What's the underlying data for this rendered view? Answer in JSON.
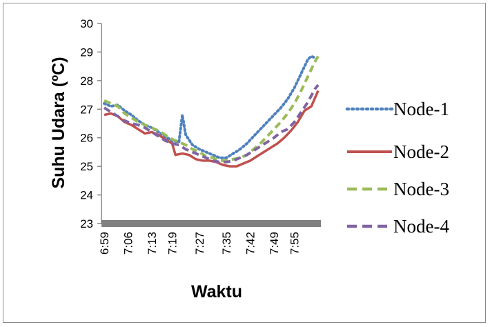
{
  "chart_data": {
    "type": "line",
    "xlabel": "Waktu",
    "ylabel": "Suhu Udara (ºC)",
    "ylim": [
      23,
      30
    ],
    "yticks": [
      "23",
      "24",
      "25",
      "26",
      "27",
      "28",
      "29",
      "30"
    ],
    "x_tick_labels": [
      "6:59",
      "7:06",
      "7:13",
      "7:19",
      "7:27",
      "7:35",
      "7:42",
      "7:49",
      "7:55"
    ],
    "x_start": "6:59",
    "x_end": "8:02",
    "grid": false,
    "legend_position": "right",
    "series": [
      {
        "name": "Node-1",
        "color": "#4f81bd",
        "dash": "dotted",
        "points": [
          [
            "6:59",
            27.2
          ],
          [
            "7:01",
            27.1
          ],
          [
            "7:03",
            27.15
          ],
          [
            "7:05",
            26.95
          ],
          [
            "7:07",
            26.8
          ],
          [
            "7:09",
            26.6
          ],
          [
            "7:11",
            26.45
          ],
          [
            "7:13",
            26.35
          ],
          [
            "7:15",
            26.2
          ],
          [
            "7:17",
            26.05
          ],
          [
            "7:19",
            25.9
          ],
          [
            "7:21",
            25.85
          ],
          [
            "7:22",
            26.8
          ],
          [
            "7:23",
            26.1
          ],
          [
            "7:25",
            25.75
          ],
          [
            "7:27",
            25.6
          ],
          [
            "7:29",
            25.5
          ],
          [
            "7:31",
            25.4
          ],
          [
            "7:33",
            25.3
          ],
          [
            "7:35",
            25.3
          ],
          [
            "7:37",
            25.45
          ],
          [
            "7:39",
            25.6
          ],
          [
            "7:41",
            25.8
          ],
          [
            "7:43",
            26.05
          ],
          [
            "7:45",
            26.3
          ],
          [
            "7:47",
            26.55
          ],
          [
            "7:49",
            26.8
          ],
          [
            "7:51",
            27.05
          ],
          [
            "7:53",
            27.35
          ],
          [
            "7:55",
            27.75
          ],
          [
            "7:57",
            28.25
          ],
          [
            "7:59",
            28.75
          ],
          [
            "8:00",
            28.85
          ],
          [
            "8:01",
            28.8
          ]
        ]
      },
      {
        "name": "Node-2",
        "color": "#c0504d",
        "dash": "solid",
        "points": [
          [
            "6:59",
            26.8
          ],
          [
            "7:01",
            26.85
          ],
          [
            "7:03",
            26.75
          ],
          [
            "7:05",
            26.55
          ],
          [
            "7:07",
            26.45
          ],
          [
            "7:09",
            26.3
          ],
          [
            "7:11",
            26.15
          ],
          [
            "7:13",
            26.2
          ],
          [
            "7:15",
            26.1
          ],
          [
            "7:17",
            25.95
          ],
          [
            "7:19",
            25.8
          ],
          [
            "7:20",
            25.4
          ],
          [
            "7:22",
            25.45
          ],
          [
            "7:24",
            25.4
          ],
          [
            "7:26",
            25.25
          ],
          [
            "7:28",
            25.2
          ],
          [
            "7:30",
            25.2
          ],
          [
            "7:32",
            25.15
          ],
          [
            "7:34",
            25.05
          ],
          [
            "7:36",
            25.0
          ],
          [
            "7:38",
            25.0
          ],
          [
            "7:40",
            25.1
          ],
          [
            "7:42",
            25.2
          ],
          [
            "7:44",
            25.35
          ],
          [
            "7:46",
            25.5
          ],
          [
            "7:48",
            25.65
          ],
          [
            "7:50",
            25.8
          ],
          [
            "7:52",
            26.0
          ],
          [
            "7:54",
            26.25
          ],
          [
            "7:56",
            26.55
          ],
          [
            "7:58",
            26.95
          ],
          [
            "8:00",
            27.1
          ],
          [
            "8:02",
            27.65
          ]
        ]
      },
      {
        "name": "Node-3",
        "color": "#9bbb59",
        "dash": "dashed",
        "points": [
          [
            "6:59",
            27.3
          ],
          [
            "7:01",
            27.2
          ],
          [
            "7:03",
            27.1
          ],
          [
            "7:05",
            26.85
          ],
          [
            "7:07",
            26.7
          ],
          [
            "7:09",
            26.55
          ],
          [
            "7:11",
            26.45
          ],
          [
            "7:13",
            26.35
          ],
          [
            "7:15",
            26.25
          ],
          [
            "7:17",
            26.1
          ],
          [
            "7:19",
            25.95
          ],
          [
            "7:21",
            25.85
          ],
          [
            "7:23",
            25.75
          ],
          [
            "7:25",
            25.6
          ],
          [
            "7:27",
            25.5
          ],
          [
            "7:29",
            25.35
          ],
          [
            "7:31",
            25.3
          ],
          [
            "7:33",
            25.2
          ],
          [
            "7:35",
            25.2
          ],
          [
            "7:37",
            25.25
          ],
          [
            "7:39",
            25.3
          ],
          [
            "7:41",
            25.4
          ],
          [
            "7:43",
            25.6
          ],
          [
            "7:45",
            25.8
          ],
          [
            "7:47",
            26.05
          ],
          [
            "7:49",
            26.3
          ],
          [
            "7:51",
            26.55
          ],
          [
            "7:53",
            26.85
          ],
          [
            "7:55",
            27.2
          ],
          [
            "7:57",
            27.65
          ],
          [
            "7:59",
            28.15
          ],
          [
            "8:01",
            28.65
          ],
          [
            "8:02",
            28.85
          ]
        ]
      },
      {
        "name": "Node-4",
        "color": "#8064a2",
        "dash": "dashed",
        "points": [
          [
            "6:59",
            27.05
          ],
          [
            "7:01",
            26.9
          ],
          [
            "7:03",
            26.75
          ],
          [
            "7:05",
            26.6
          ],
          [
            "7:07",
            26.5
          ],
          [
            "7:09",
            26.45
          ],
          [
            "7:11",
            26.35
          ],
          [
            "7:13",
            26.2
          ],
          [
            "7:15",
            26.05
          ],
          [
            "7:17",
            25.9
          ],
          [
            "7:19",
            25.8
          ],
          [
            "7:21",
            25.75
          ],
          [
            "7:23",
            25.6
          ],
          [
            "7:25",
            25.5
          ],
          [
            "7:27",
            25.4
          ],
          [
            "7:29",
            25.3
          ],
          [
            "7:31",
            25.2
          ],
          [
            "7:33",
            25.15
          ],
          [
            "7:35",
            25.15
          ],
          [
            "7:37",
            25.2
          ],
          [
            "7:39",
            25.3
          ],
          [
            "7:41",
            25.4
          ],
          [
            "7:43",
            25.55
          ],
          [
            "7:45",
            25.7
          ],
          [
            "7:47",
            25.85
          ],
          [
            "7:49",
            26.0
          ],
          [
            "7:51",
            26.2
          ],
          [
            "7:53",
            26.3
          ],
          [
            "7:55",
            26.55
          ],
          [
            "7:57",
            26.9
          ],
          [
            "7:59",
            27.25
          ],
          [
            "8:01",
            27.7
          ],
          [
            "8:02",
            27.85
          ]
        ]
      }
    ]
  }
}
